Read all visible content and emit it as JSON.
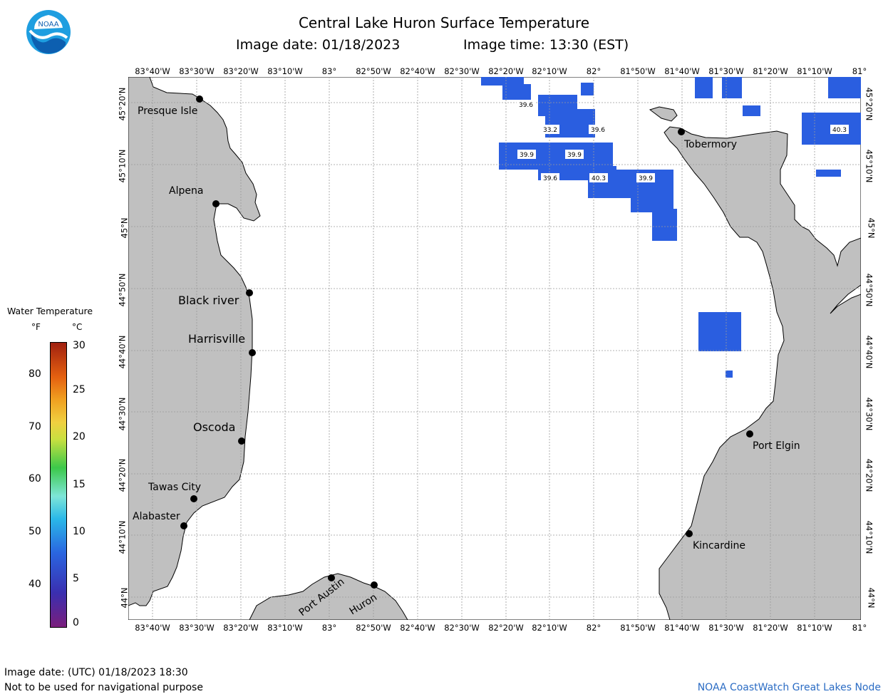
{
  "header": {
    "title": "Central Lake Huron Surface Temperature",
    "image_date": "Image date: 01/18/2023",
    "image_time": "Image time: 13:30 (EST)"
  },
  "logo": {
    "text": "NOAA",
    "icon": "noaa-logo-icon"
  },
  "lon_labels": [
    "83°40'W",
    "83°30'W",
    "83°20'W",
    "83°10'W",
    "83°",
    "82°50'W",
    "82°40'W",
    "82°30'W",
    "82°20'W",
    "82°10'W",
    "82°",
    "81°50'W",
    "81°40'W",
    "81°30'W",
    "81°20'W",
    "81°10'W",
    "81°"
  ],
  "lat_labels": [
    "45°20'N",
    "45°10'N",
    "45°N",
    "44°50'N",
    "44°40'N",
    "44°30'N",
    "44°20'N",
    "44°10'N",
    "44°N"
  ],
  "cities": {
    "presque_isle": "Presque Isle",
    "alpena": "Alpena",
    "black_river": "Black river",
    "harrisville": "Harrisville",
    "oscoda": "Oscoda",
    "tawas_city": "Tawas City",
    "alabaster": "Alabaster",
    "port_austin": "Port Austin",
    "huron": "Huron",
    "tobermory": "Tobermory",
    "port_elgin": "Port Elgin",
    "kincardine": "Kincardine"
  },
  "temp_labels": [
    "39.6",
    "33.2",
    "39.6",
    "39.9",
    "39.9",
    "39.6",
    "40.3",
    "39.9",
    "40.3"
  ],
  "legend": {
    "title": "Water Temperature",
    "unit_f": "°F",
    "unit_c": "°C",
    "f_ticks": [
      "80",
      "70",
      "60",
      "50",
      "40"
    ],
    "c_ticks": [
      "30",
      "25",
      "20",
      "15",
      "10",
      "5",
      "0"
    ]
  },
  "footer": {
    "utc_date": "Image date: (UTC) 01/18/2023  18:30",
    "disclaimer": "Not to be used for navigational purpose",
    "credit": "NOAA CoastWatch Great Lakes Node"
  },
  "colors": {
    "land": "#c0c0c0",
    "water_temp": "#2a5ee0",
    "grid": "#9a9a9a",
    "credit": "#2b6cc4"
  }
}
